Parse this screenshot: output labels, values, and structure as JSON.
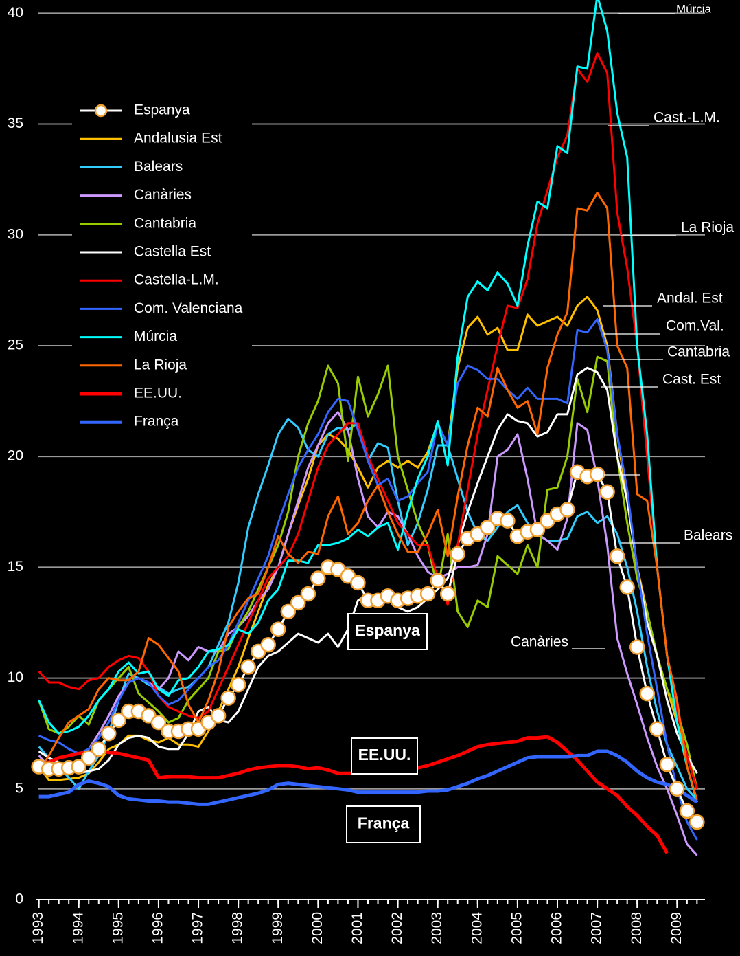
{
  "chart_data": {
    "type": "line",
    "x": [
      1993,
      1993.25,
      1993.5,
      1993.75,
      1994,
      1994.25,
      1994.5,
      1994.75,
      1995,
      1995.25,
      1995.5,
      1995.75,
      1996,
      1996.25,
      1996.5,
      1996.75,
      1997,
      1997.25,
      1997.5,
      1997.75,
      1998,
      1998.25,
      1998.5,
      1998.75,
      1999,
      1999.25,
      1999.5,
      1999.75,
      2000,
      2000.25,
      2000.5,
      2000.75,
      2001,
      2001.25,
      2001.5,
      2001.75,
      2002,
      2002.25,
      2002.5,
      2002.75,
      2003,
      2003.25,
      2003.5,
      2003.75,
      2004,
      2004.25,
      2004.5,
      2004.75,
      2005,
      2005.25,
      2005.5,
      2005.75,
      2006,
      2006.25,
      2006.5,
      2006.75,
      2007,
      2007.25,
      2007.5,
      2007.75,
      2008,
      2008.25,
      2008.5,
      2008.75,
      2009,
      2009.25,
      2009.5
    ],
    "xlim": [
      1992.8,
      2009.7
    ],
    "xticks": [
      1993,
      1994,
      1995,
      1996,
      1997,
      1998,
      1999,
      2000,
      2001,
      2002,
      2003,
      2004,
      2005,
      2006,
      2007,
      2008,
      2009
    ],
    "ylim": [
      0,
      40.6
    ],
    "yticks": [
      0,
      5,
      10,
      15,
      20,
      25,
      30,
      35,
      40
    ],
    "grid": true,
    "series": [
      {
        "name": "Espanya",
        "color": "#ffffff",
        "width": 3,
        "marker": "circle",
        "marker_edge": "#f0a030",
        "values": [
          6.0,
          5.9,
          5.9,
          5.95,
          6.0,
          6.4,
          6.8,
          7.5,
          8.1,
          8.5,
          8.5,
          8.3,
          8.0,
          7.6,
          7.6,
          7.7,
          7.7,
          8.0,
          8.3,
          9.1,
          9.7,
          10.5,
          11.2,
          11.5,
          12.2,
          13.0,
          13.4,
          13.8,
          14.5,
          15.0,
          14.9,
          14.6,
          14.3,
          13.5,
          13.5,
          13.7,
          13.5,
          13.6,
          13.7,
          13.8,
          14.4,
          13.8,
          15.6,
          16.3,
          16.5,
          16.8,
          17.2,
          17.1,
          16.4,
          16.6,
          16.7,
          17.1,
          17.4,
          17.6,
          19.3,
          19.1,
          19.2,
          18.4,
          15.5,
          14.1,
          11.4,
          9.3,
          7.7,
          6.1,
          5.0,
          4.0,
          3.5
        ]
      },
      {
        "name": "Andalusia Est",
        "color": "#ffc000",
        "width": 3,
        "values": [
          6.0,
          5.4,
          5.4,
          5.45,
          5.5,
          5.7,
          6.2,
          6.8,
          7.0,
          7.4,
          7.4,
          7.2,
          7.1,
          7.3,
          7.0,
          7.0,
          6.9,
          7.6,
          8.5,
          9.5,
          10.5,
          11.8,
          13.0,
          14.2,
          15.0,
          16.5,
          17.8,
          19.0,
          20.5,
          21.0,
          20.8,
          20.3,
          19.5,
          18.6,
          19.5,
          19.8,
          19.5,
          19.8,
          19.5,
          20.2,
          21.5,
          20.5,
          24.0,
          25.8,
          26.3,
          25.5,
          25.8,
          24.8,
          24.8,
          26.4,
          25.9,
          26.1,
          26.3,
          25.9,
          26.8,
          27.2,
          26.6,
          25.0,
          21.0,
          18.0,
          15.0,
          13.0,
          11.0,
          9.5,
          8.0,
          6.5,
          5.0
        ]
      },
      {
        "name": "Balears",
        "color": "#33ccff",
        "width": 3,
        "values": [
          6.9,
          6.4,
          6.0,
          5.5,
          5.0,
          5.8,
          6.5,
          7.5,
          9.0,
          10.2,
          10.0,
          9.7,
          9.6,
          9.3,
          9.5,
          9.6,
          10.0,
          10.5,
          11.5,
          12.5,
          14.3,
          16.8,
          18.3,
          19.6,
          21.0,
          21.7,
          21.3,
          20.3,
          20.0,
          21.0,
          21.3,
          21.2,
          21.5,
          19.8,
          20.6,
          20.4,
          18.0,
          16.0,
          17.0,
          18.5,
          20.5,
          20.5,
          19.0,
          17.5,
          16.5,
          16.2,
          16.8,
          17.5,
          17.8,
          17.0,
          16.5,
          16.2,
          16.2,
          16.3,
          17.3,
          17.5,
          17.0,
          17.3,
          16.5,
          15.0,
          13.0,
          10.5,
          8.5,
          7.0,
          6.0,
          5.0,
          4.5
        ]
      },
      {
        "name": "Canàries",
        "color": "#cc99ff",
        "width": 3,
        "values": [
          6.5,
          6.0,
          5.8,
          5.8,
          6.0,
          6.8,
          7.5,
          8.3,
          9.2,
          9.8,
          10.0,
          9.8,
          9.5,
          10.0,
          11.2,
          10.8,
          11.4,
          11.2,
          11.2,
          12.0,
          12.3,
          12.8,
          13.5,
          14.0,
          15.0,
          16.5,
          18.0,
          19.5,
          20.5,
          21.5,
          22.0,
          21.2,
          19.0,
          17.3,
          16.8,
          17.5,
          17.3,
          16.5,
          15.5,
          14.8,
          14.5,
          14.7,
          15.0,
          15.0,
          15.1,
          16.5,
          20.0,
          20.3,
          21.0,
          19.0,
          16.5,
          16.2,
          15.8,
          17.2,
          21.5,
          21.2,
          19.0,
          16.0,
          11.8,
          10.2,
          8.8,
          7.3,
          6.0,
          5.0,
          3.8,
          2.5,
          2.0
        ]
      },
      {
        "name": "Cantabria",
        "color": "#99cc00",
        "width": 3,
        "values": [
          9.0,
          7.7,
          7.5,
          7.8,
          8.3,
          7.9,
          9.0,
          9.5,
          10.0,
          10.5,
          9.3,
          8.9,
          8.5,
          8.0,
          8.2,
          9.0,
          9.5,
          10.0,
          11.2,
          11.3,
          12.3,
          13.0,
          14.0,
          15.0,
          16.0,
          17.5,
          20.0,
          21.5,
          22.5,
          24.1,
          23.3,
          19.8,
          23.6,
          21.8,
          22.8,
          24.1,
          20.0,
          18.5,
          17.0,
          16.0,
          14.0,
          16.5,
          13.0,
          12.3,
          13.5,
          13.2,
          15.5,
          15.1,
          14.7,
          16.0,
          15.0,
          18.5,
          18.6,
          20.0,
          23.5,
          22.0,
          24.5,
          24.3,
          20.0,
          17.0,
          14.5,
          13.0,
          11.0,
          9.5,
          8.5,
          7.0,
          5.0
        ]
      },
      {
        "name": "Castella Est",
        "color": "#ffffff",
        "width": 3,
        "values": [
          6.7,
          6.4,
          6.2,
          6.0,
          5.7,
          5.8,
          5.9,
          6.3,
          7.0,
          7.3,
          7.4,
          7.3,
          6.9,
          6.8,
          6.8,
          7.5,
          8.5,
          8.7,
          8.1,
          8.0,
          8.5,
          9.5,
          10.5,
          11.0,
          11.2,
          11.6,
          12.0,
          11.8,
          11.6,
          12.0,
          11.4,
          12.2,
          13.5,
          13.8,
          13.5,
          13.5,
          13.2,
          13.0,
          13.2,
          13.6,
          14.0,
          14.5,
          16.0,
          17.5,
          18.8,
          20.0,
          21.2,
          21.9,
          21.6,
          21.5,
          20.9,
          21.1,
          21.9,
          21.9,
          23.7,
          24.0,
          23.8,
          23.0,
          20.0,
          18.0,
          15.0,
          12.5,
          11.0,
          9.0,
          7.5,
          6.5,
          5.7
        ]
      },
      {
        "name": "Castella-L.M.",
        "color": "#ff0000",
        "width": 3,
        "values": [
          10.3,
          9.8,
          9.8,
          9.6,
          9.5,
          9.9,
          10.0,
          10.5,
          10.8,
          11.0,
          10.9,
          10.3,
          9.2,
          8.7,
          8.5,
          8.3,
          8.2,
          8.5,
          9.5,
          10.5,
          11.5,
          12.5,
          13.5,
          14.5,
          15.0,
          15.5,
          16.5,
          18.0,
          19.5,
          20.5,
          21.0,
          21.5,
          21.5,
          20.0,
          19.0,
          18.0,
          17.0,
          16.5,
          16.0,
          16.0,
          14.5,
          13.3,
          16.0,
          18.5,
          21.0,
          23.0,
          25.0,
          26.8,
          26.7,
          28.0,
          30.5,
          32.0,
          33.5,
          34.5,
          37.5,
          36.9,
          38.2,
          37.3,
          31.0,
          28.5,
          25.0,
          20.0,
          15.0,
          11.0,
          8.5,
          6.5,
          5.0
        ]
      },
      {
        "name": "Com. Valenciana",
        "color": "#3366ff",
        "width": 3,
        "values": [
          7.4,
          7.2,
          7.1,
          6.8,
          6.6,
          6.8,
          7.3,
          8.0,
          9.0,
          9.8,
          10.0,
          9.8,
          9.2,
          8.8,
          9.0,
          9.5,
          10.0,
          10.5,
          10.8,
          11.5,
          12.5,
          13.5,
          14.5,
          15.5,
          17.0,
          18.3,
          19.5,
          20.3,
          21.0,
          22.0,
          22.6,
          22.5,
          21.2,
          19.8,
          18.7,
          19.0,
          18.0,
          18.2,
          18.8,
          19.3,
          21.5,
          20.5,
          23.3,
          24.1,
          23.9,
          23.5,
          23.5,
          23.0,
          22.6,
          23.1,
          22.6,
          22.6,
          22.6,
          22.4,
          25.7,
          25.6,
          26.2,
          24.8,
          21.0,
          18.5,
          15.0,
          12.0,
          9.5,
          7.0,
          5.0,
          3.5,
          2.7
        ]
      },
      {
        "name": "Múrcia",
        "color": "#00ffff",
        "width": 3,
        "values": [
          9.0,
          8.0,
          7.5,
          7.6,
          7.8,
          8.3,
          9.0,
          9.5,
          10.3,
          10.7,
          10.2,
          10.3,
          9.5,
          9.2,
          9.9,
          10.0,
          10.5,
          11.2,
          11.3,
          11.5,
          12.2,
          12.0,
          12.5,
          13.5,
          14.0,
          15.3,
          15.3,
          15.2,
          16.0,
          16.0,
          16.1,
          16.3,
          16.7,
          16.4,
          16.8,
          17.0,
          15.8,
          17.5,
          19.0,
          20.0,
          21.6,
          19.6,
          24.5,
          27.2,
          27.9,
          27.5,
          28.3,
          27.8,
          26.8,
          29.5,
          31.5,
          31.2,
          34.0,
          33.7,
          37.6,
          37.5,
          40.8,
          39.2,
          35.5,
          33.5,
          25.0,
          21.0,
          15.0,
          11.0,
          8.0,
          6.0,
          4.4
        ]
      },
      {
        "name": "La Rioja",
        "color": "#ff6600",
        "width": 3,
        "values": [
          5.8,
          6.5,
          7.3,
          8.0,
          8.3,
          8.6,
          9.5,
          10.0,
          9.9,
          9.9,
          10.3,
          11.8,
          11.5,
          10.9,
          10.3,
          8.8,
          8.0,
          9.0,
          10.3,
          12.3,
          13.0,
          13.6,
          13.8,
          15.0,
          16.4,
          15.6,
          15.2,
          15.7,
          15.6,
          17.3,
          18.2,
          16.5,
          17.0,
          18.0,
          18.7,
          17.5,
          16.5,
          15.7,
          15.7,
          16.5,
          17.6,
          15.5,
          18.2,
          20.5,
          22.2,
          21.8,
          24.0,
          23.0,
          22.2,
          22.5,
          21.0,
          24.0,
          25.5,
          26.5,
          31.2,
          31.1,
          31.9,
          31.2,
          25.0,
          24.0,
          18.3,
          18.0,
          15.0,
          11.0,
          9.0,
          6.0,
          4.5
        ]
      },
      {
        "name": "EE.UU.",
        "color": "#ff0000",
        "width": 5,
        "values": [
          6.0,
          6.2,
          6.4,
          6.5,
          6.6,
          6.65,
          6.7,
          6.65,
          6.6,
          6.5,
          6.4,
          6.3,
          5.5,
          5.55,
          5.55,
          5.55,
          5.5,
          5.5,
          5.5,
          5.6,
          5.7,
          5.85,
          5.95,
          6.0,
          6.05,
          6.05,
          6.0,
          5.9,
          5.95,
          5.85,
          5.7,
          5.7,
          5.7,
          5.7,
          5.75,
          5.8,
          5.8,
          5.85,
          5.95,
          6.05,
          6.2,
          6.35,
          6.5,
          6.7,
          6.9,
          7.0,
          7.05,
          7.1,
          7.15,
          7.3,
          7.3,
          7.35,
          7.1,
          6.7,
          6.3,
          5.8,
          5.3,
          5.0,
          4.7,
          4.2,
          3.8,
          3.3,
          2.9,
          2.1,
          null,
          null,
          null
        ]
      },
      {
        "name": "França",
        "color": "#3366ff",
        "width": 5,
        "values": [
          4.65,
          4.65,
          4.75,
          4.85,
          5.2,
          5.35,
          5.25,
          5.1,
          4.7,
          4.55,
          4.5,
          4.45,
          4.45,
          4.4,
          4.4,
          4.35,
          4.3,
          4.3,
          4.4,
          4.5,
          4.6,
          4.7,
          4.8,
          4.95,
          5.2,
          5.25,
          5.2,
          5.15,
          5.1,
          5.05,
          5.0,
          4.95,
          4.85,
          4.85,
          4.85,
          4.85,
          4.85,
          4.85,
          4.85,
          4.9,
          4.9,
          4.95,
          5.1,
          5.25,
          5.45,
          5.6,
          5.8,
          6.0,
          6.2,
          6.4,
          6.45,
          6.45,
          6.45,
          6.45,
          6.5,
          6.5,
          6.7,
          6.7,
          6.5,
          6.2,
          5.8,
          5.5,
          5.3,
          5.2,
          5.0,
          4.7,
          4.4
        ]
      }
    ],
    "annotations": [
      "Múrcia",
      "Cast.-L.M.",
      "La Rioja",
      "Andal. Est",
      "Com.Val.",
      "Cantabria",
      "Cast. Est",
      "Balears",
      "Canàries",
      "Espanya",
      "EE.UU.",
      "França"
    ]
  }
}
